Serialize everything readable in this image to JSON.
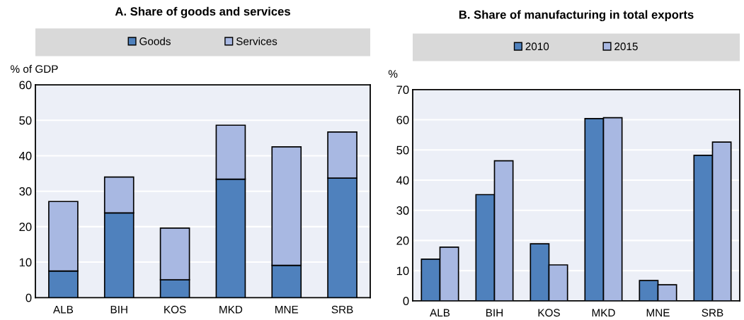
{
  "chart_data": [
    {
      "type": "bar",
      "title": "A. Share of goods and services",
      "ylabel": "% of GDP",
      "categories": [
        "ALB",
        "BIH",
        "KOS",
        "MKD",
        "MNE",
        "SRB"
      ],
      "stacked": true,
      "ylim": [
        0,
        60
      ],
      "yticks": [
        0,
        10,
        20,
        30,
        40,
        50,
        60
      ],
      "grid": "y",
      "legend": "top",
      "series": [
        {
          "name": "Goods",
          "color": "#4f81bd",
          "values": [
            7.5,
            23.9,
            5.0,
            33.4,
            9.1,
            33.7
          ]
        },
        {
          "name": "Services",
          "color": "#a8b8e2",
          "values": [
            19.6,
            10.1,
            14.6,
            15.2,
            33.4,
            13.0
          ]
        }
      ]
    },
    {
      "type": "bar",
      "title": "B. Share of manufacturing in total exports",
      "ylabel": "%",
      "categories": [
        "ALB",
        "BIH",
        "KOS",
        "MKD",
        "MNE",
        "SRB"
      ],
      "stacked": false,
      "ylim": [
        0,
        70
      ],
      "yticks": [
        0,
        10,
        20,
        30,
        40,
        50,
        60,
        70
      ],
      "grid": "y",
      "legend": "top",
      "series": [
        {
          "name": "2010",
          "color": "#4f81bd",
          "values": [
            13.8,
            35.2,
            18.9,
            60.4,
            6.7,
            48.2
          ]
        },
        {
          "name": "2015",
          "color": "#a8b8e2",
          "values": [
            17.8,
            46.4,
            11.9,
            60.7,
            5.3,
            52.6
          ]
        }
      ]
    }
  ]
}
